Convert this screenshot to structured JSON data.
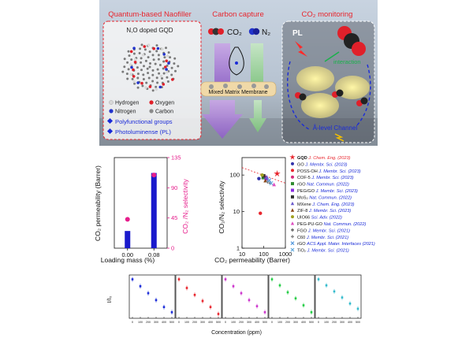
{
  "top_panel": {
    "title_left": "Quantum-based Naofiller",
    "title_center": "Carbon capture",
    "title_right": "CO₂ monitoring",
    "gqd_label": "N,O doped GQD",
    "legend_atoms": [
      "Hydrogen",
      "Oxygen",
      "Nitrogen",
      "Carbon"
    ],
    "atom_colors": [
      "#d8d8d8",
      "#e0202a",
      "#2233cc",
      "#8a8a8a"
    ],
    "features": [
      "Polyfunctional groups",
      "Photoluminense (PL)"
    ],
    "gas_co2": "CO₂",
    "gas_n2": "N₂",
    "membrane_label": "Mixed Matrix Membrane",
    "pl_label": "PL",
    "interaction_label": "interaction",
    "channel_label": "Å-level Channel",
    "colors": {
      "red_title": "#e8252d",
      "blue_text": "#1a2bd8",
      "green_text": "#19b14b"
    }
  },
  "chart_loading": {
    "chart_data": {
      "type": "bar",
      "categories": [
        "0.00",
        "0.08"
      ],
      "series": [
        {
          "name": "CO₂ permeability (Barrer)",
          "values": [
            95,
            415
          ]
        },
        {
          "name": "CO₂/N₂ selectivity",
          "values": [
            43,
            109
          ]
        }
      ],
      "xlabel": "Loading mass (%)",
      "ylabel_left": "CO₂ permeability (Barrer)",
      "ylabel_right": "CO₂ /N₂ selectivity",
      "ylim_left": [
        0,
        500
      ],
      "ylim_right": [
        0,
        135
      ],
      "yticks_right": [
        "0",
        "45",
        "90",
        "135"
      ],
      "colors": {
        "bar": "#1a1acc",
        "point": "#e61e8c"
      }
    }
  },
  "chart_robeson": {
    "chart_data": {
      "type": "scatter",
      "xlabel": "CO₂ permeability (Barrer)",
      "ylabel": "CO₂/N₂ selectivity",
      "x_scale": "log",
      "y_scale": "log",
      "xlim": [
        10,
        1000
      ],
      "ylim": [
        1,
        300
      ],
      "xticks": [
        "10",
        "100",
        "1000"
      ],
      "yticks": [
        "1",
        "10",
        "100"
      ],
      "series": [
        {
          "name": "GQD",
          "ref": "J. Chem. Eng. (2023)",
          "x": 415,
          "y": 109,
          "color": "#e8252d",
          "marker": "star"
        },
        {
          "name": "GO",
          "ref": "J. Membr. Sci. (2023)",
          "x": 60,
          "y": 80,
          "color": "#3333aa",
          "marker": "circle"
        },
        {
          "name": "POSS-OH",
          "ref": "J. Membr. Sci. (2023)",
          "x": 70,
          "y": 9,
          "color": "#e8252d",
          "marker": "circle"
        },
        {
          "name": "COF-5",
          "ref": "J. Membr. Sci. (2023)",
          "x": 110,
          "y": 90,
          "color": "#d62a7a",
          "marker": "circle"
        },
        {
          "name": "rGO",
          "ref": "Nat. Commun. (2022)",
          "x": 95,
          "y": 85,
          "color": "#2f8a2f",
          "marker": "square"
        },
        {
          "name": "PEG/GO",
          "ref": "J. Membr. Sci. (2023)",
          "x": 130,
          "y": 80,
          "color": "#8a2be2",
          "marker": "square"
        },
        {
          "name": "MoS₂",
          "ref": "Nat. Commun. (2022)",
          "x": 100,
          "y": 95,
          "color": "#333333",
          "marker": "square"
        },
        {
          "name": "MXene",
          "ref": "J. Chem. Eng. (2023)",
          "x": 140,
          "y": 88,
          "color": "#6a5acd",
          "marker": "triangle"
        },
        {
          "name": "ZIF-8",
          "ref": "J. Membr. Sci. (2023)",
          "x": 120,
          "y": 70,
          "color": "#8b4513",
          "marker": "triangle"
        },
        {
          "name": "UIO66",
          "ref": "Sci. Adv. (2022)",
          "x": 85,
          "y": 100,
          "color": "#a0a020",
          "marker": "circle"
        },
        {
          "name": "PEG-PU-GO",
          "ref": "Nat. Commun. (2022)",
          "x": 300,
          "y": 55,
          "color": "#e04fc0",
          "marker": "triangle"
        },
        {
          "name": "FGO",
          "ref": "J. Membr. Sci. (2021)",
          "x": 200,
          "y": 60,
          "color": "#555555",
          "marker": "plus"
        },
        {
          "name": "C60",
          "ref": "J. Membr. Sci. (2021)",
          "x": 150,
          "y": 65,
          "color": "#777777",
          "marker": "plus"
        },
        {
          "name": "rGO",
          "ref": "ACS Appl. Mater. Interfaces (2021)",
          "x": 180,
          "y": 72,
          "color": "#5599dd",
          "marker": "x"
        },
        {
          "name": "TiO₂",
          "ref": "J. Membr. Sci. (2021)",
          "x": 220,
          "y": 60,
          "color": "#66aadd",
          "marker": "x"
        }
      ],
      "upper_bound": {
        "x": [
          10,
          1000
        ],
        "y": [
          160,
          60
        ]
      }
    }
  },
  "chart_sensing": {
    "chart_data": {
      "type": "scatter",
      "xlabel": "Concentration (ppm)",
      "ylabel": "I/I₀",
      "ylim": [
        0.55,
        1.05
      ],
      "xticks": [
        "0",
        "100",
        "200",
        "300",
        "400",
        "500"
      ],
      "panels": [
        {
          "color": "#1a2bd8",
          "x": [
            0,
            100,
            200,
            300,
            400,
            500
          ],
          "y": [
            1.0,
            0.92,
            0.84,
            0.76,
            0.68,
            0.62
          ]
        },
        {
          "color": "#e8252d",
          "x": [
            0,
            100,
            200,
            300,
            400,
            500
          ],
          "y": [
            1.0,
            0.9,
            0.82,
            0.75,
            0.68,
            0.6
          ]
        },
        {
          "color": "#cc33cc",
          "x": [
            0,
            100,
            200,
            300,
            400,
            500
          ],
          "y": [
            1.0,
            0.92,
            0.84,
            0.76,
            0.69,
            0.62
          ]
        },
        {
          "color": "#22cc44",
          "x": [
            0,
            100,
            200,
            300,
            400,
            500
          ],
          "y": [
            1.0,
            0.93,
            0.85,
            0.78,
            0.7,
            0.62
          ]
        },
        {
          "color": "#33bbcc",
          "x": [
            0,
            100,
            200,
            300,
            400,
            500
          ],
          "y": [
            1.0,
            0.93,
            0.86,
            0.79,
            0.72,
            0.66
          ]
        }
      ]
    }
  }
}
